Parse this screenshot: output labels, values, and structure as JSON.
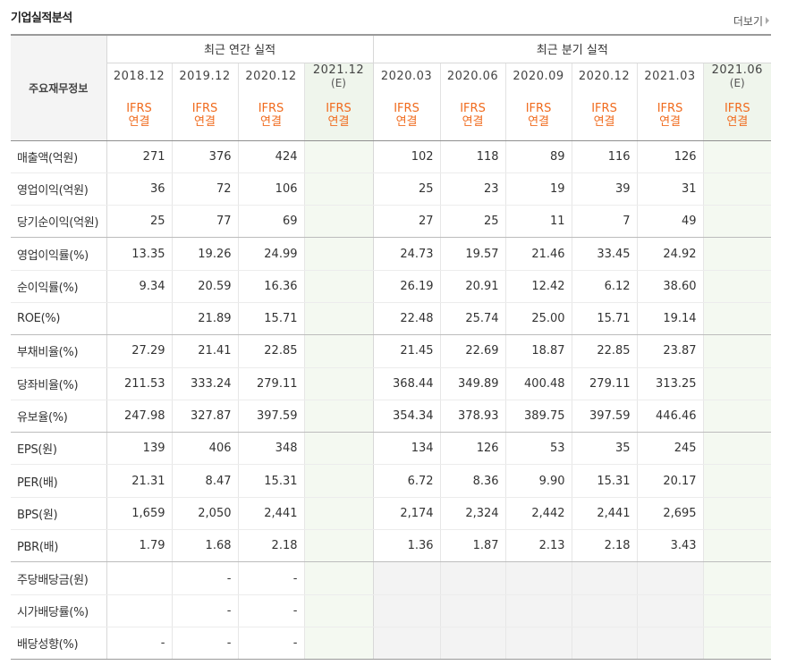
{
  "header": {
    "title": "기업실적분석",
    "more_label": "더보기"
  },
  "sections": {
    "annual": "최근 연간 실적",
    "quarterly": "최근 분기 실적"
  },
  "label_header": "주요재무정보",
  "periods": [
    {
      "date": "2018.12",
      "e": "",
      "l1": "IFRS",
      "l2": "연결"
    },
    {
      "date": "2019.12",
      "e": "",
      "l1": "IFRS",
      "l2": "연결"
    },
    {
      "date": "2020.12",
      "e": "",
      "l1": "IFRS",
      "l2": "연결"
    },
    {
      "date": "2021.12",
      "e": "(E)",
      "l1": "IFRS",
      "l2": "연결"
    },
    {
      "date": "2020.03",
      "e": "",
      "l1": "IFRS",
      "l2": "연결"
    },
    {
      "date": "2020.06",
      "e": "",
      "l1": "IFRS",
      "l2": "연결"
    },
    {
      "date": "2020.09",
      "e": "",
      "l1": "IFRS",
      "l2": "연결"
    },
    {
      "date": "2020.12",
      "e": "",
      "l1": "IFRS",
      "l2": "연결"
    },
    {
      "date": "2021.03",
      "e": "",
      "l1": "IFRS",
      "l2": "연결"
    },
    {
      "date": "2021.06",
      "e": "(E)",
      "l1": "IFRS",
      "l2": "연결"
    }
  ],
  "rows": [
    {
      "label": "매출액(억원)",
      "values": [
        "271",
        "376",
        "424",
        "",
        "102",
        "118",
        "89",
        "116",
        "126",
        ""
      ]
    },
    {
      "label": "영업이익(억원)",
      "values": [
        "36",
        "72",
        "106",
        "",
        "25",
        "23",
        "19",
        "39",
        "31",
        ""
      ]
    },
    {
      "label": "당기순이익(억원)",
      "values": [
        "25",
        "77",
        "69",
        "",
        "27",
        "25",
        "11",
        "7",
        "49",
        ""
      ]
    },
    {
      "label": "영업이익률(%)",
      "values": [
        "13.35",
        "19.26",
        "24.99",
        "",
        "24.73",
        "19.57",
        "21.46",
        "33.45",
        "24.92",
        ""
      ]
    },
    {
      "label": "순이익률(%)",
      "values": [
        "9.34",
        "20.59",
        "16.36",
        "",
        "26.19",
        "20.91",
        "12.42",
        "6.12",
        "38.60",
        ""
      ]
    },
    {
      "label": "ROE(%)",
      "values": [
        "",
        "21.89",
        "15.71",
        "",
        "22.48",
        "25.74",
        "25.00",
        "15.71",
        "19.14",
        ""
      ]
    },
    {
      "label": "부채비율(%)",
      "values": [
        "27.29",
        "21.41",
        "22.85",
        "",
        "21.45",
        "22.69",
        "18.87",
        "22.85",
        "23.87",
        ""
      ]
    },
    {
      "label": "당좌비율(%)",
      "values": [
        "211.53",
        "333.24",
        "279.11",
        "",
        "368.44",
        "349.89",
        "400.48",
        "279.11",
        "313.25",
        ""
      ]
    },
    {
      "label": "유보율(%)",
      "values": [
        "247.98",
        "327.87",
        "397.59",
        "",
        "354.34",
        "378.93",
        "389.75",
        "397.59",
        "446.46",
        ""
      ]
    },
    {
      "label": "EPS(원)",
      "values": [
        "139",
        "406",
        "348",
        "",
        "134",
        "126",
        "53",
        "35",
        "245",
        ""
      ]
    },
    {
      "label": "PER(배)",
      "values": [
        "21.31",
        "8.47",
        "15.31",
        "",
        "6.72",
        "8.36",
        "9.90",
        "15.31",
        "20.17",
        ""
      ]
    },
    {
      "label": "BPS(원)",
      "values": [
        "1,659",
        "2,050",
        "2,441",
        "",
        "2,174",
        "2,324",
        "2,442",
        "2,441",
        "2,695",
        ""
      ]
    },
    {
      "label": "PBR(배)",
      "values": [
        "1.79",
        "1.68",
        "2.18",
        "",
        "1.36",
        "1.87",
        "2.13",
        "2.18",
        "3.43",
        ""
      ]
    },
    {
      "label": "주당배당금(원)",
      "values": [
        "",
        "-",
        "-",
        "",
        "",
        "",
        "",
        "",
        "",
        ""
      ]
    },
    {
      "label": "시가배당률(%)",
      "values": [
        "",
        "-",
        "-",
        "",
        "",
        "",
        "",
        "",
        "",
        ""
      ]
    },
    {
      "label": "배당성향(%)",
      "values": [
        "-",
        "-",
        "-",
        "",
        "",
        "",
        "",
        "",
        "",
        ""
      ]
    }
  ],
  "colors": {
    "ifrs": "#f06b1e",
    "estimate_bg": "#f4f9f1",
    "dividend_quarter_bg": "#f3f3f3"
  }
}
